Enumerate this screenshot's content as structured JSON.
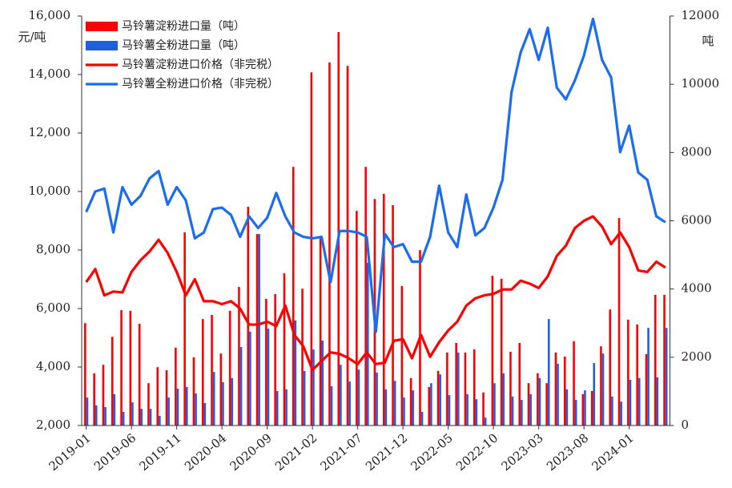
{
  "chart_data": {
    "type": "combo",
    "ylabel": "元/吨",
    "y2label": "吨",
    "categories": [
      "2019-01",
      null,
      null,
      null,
      null,
      "2019-06",
      null,
      null,
      null,
      null,
      "2019-11",
      null,
      null,
      null,
      null,
      "2020-04",
      null,
      null,
      null,
      null,
      "2020-09",
      null,
      null,
      null,
      null,
      "2021-02",
      null,
      null,
      null,
      null,
      "2021-07",
      null,
      null,
      null,
      null,
      "2021-12",
      null,
      null,
      null,
      null,
      "2022-05",
      null,
      null,
      null,
      null,
      "2022-10",
      null,
      null,
      null,
      null,
      "2023-03",
      null,
      null,
      null,
      null,
      "2023-08",
      null,
      null,
      null,
      null,
      "2024-01",
      null,
      null,
      null,
      null
    ],
    "series": [
      {
        "name": "马铃薯淀粉进口量（吨）",
        "type": "bar",
        "axis": "y2",
        "color": "#ff0000",
        "values": [
          3000,
          1530,
          1780,
          2600,
          3380,
          3360,
          2980,
          1240,
          1710,
          1620,
          2280,
          5660,
          2000,
          3120,
          3240,
          2110,
          3360,
          4060,
          6410,
          5610,
          3710,
          3850,
          4460,
          7580,
          4010,
          10350,
          5540,
          10640,
          11530,
          10540,
          6290,
          7580,
          6640,
          6790,
          6460,
          4090,
          1390,
          5140,
          1130,
          1600,
          2140,
          2420,
          2140,
          2230,
          970,
          4390,
          4300,
          2160,
          2420,
          1240,
          1530,
          1240,
          2140,
          2020,
          2470,
          920,
          1010,
          2320,
          3400,
          6080,
          3100,
          2960,
          2090,
          3830,
          3830
        ]
      },
      {
        "name": "马铃薯全粉进口量（吨）",
        "type": "bar",
        "axis": "y2",
        "color": "#1f5fe0",
        "values": [
          820,
          590,
          540,
          920,
          400,
          680,
          490,
          490,
          280,
          820,
          1080,
          1130,
          940,
          660,
          1570,
          1270,
          1390,
          2300,
          2750,
          5610,
          2840,
          1010,
          1060,
          3080,
          1600,
          2230,
          2490,
          1150,
          1780,
          1290,
          1640,
          4770,
          1550,
          1060,
          1310,
          820,
          1030,
          400,
          1240,
          1500,
          890,
          2140,
          920,
          770,
          230,
          1240,
          1530,
          850,
          750,
          920,
          1390,
          3120,
          1810,
          1060,
          750,
          1030,
          1830,
          2110,
          850,
          700,
          1340,
          1390,
          2860,
          1410,
          2860
        ]
      },
      {
        "name": "马铃薯淀粉进口价格（非完税）",
        "type": "line",
        "color": "#ff0000",
        "values": [
          6900,
          7350,
          6450,
          6580,
          6550,
          7250,
          7650,
          7950,
          8350,
          7900,
          7250,
          6450,
          7000,
          6250,
          6250,
          6150,
          6250,
          6000,
          5450,
          5450,
          5550,
          5400,
          6100,
          5100,
          4700,
          3900,
          4200,
          4500,
          4450,
          4300,
          4100,
          4500,
          4100,
          4150,
          4900,
          4950,
          4300,
          5100,
          4350,
          4850,
          5250,
          5550,
          6100,
          6350,
          6450,
          6500,
          6650,
          6650,
          6950,
          6850,
          6700,
          7100,
          7800,
          8150,
          8750,
          9000,
          9150,
          8800,
          8200,
          8600,
          8100,
          7300,
          7250,
          7600,
          7400
        ]
      },
      {
        "name": "马铃薯全粉进口价格（非完税）",
        "type": "line",
        "color": "#1a6cf0",
        "values": [
          9300,
          10000,
          10100,
          8600,
          10150,
          9550,
          9850,
          10450,
          10700,
          9550,
          10150,
          9700,
          8400,
          8600,
          9400,
          9450,
          9200,
          8450,
          9150,
          8750,
          9100,
          9950,
          9150,
          8600,
          8450,
          8400,
          8450,
          6900,
          8650,
          8650,
          8600,
          8450,
          5200,
          8550,
          8100,
          8200,
          7600,
          7600,
          8450,
          10200,
          8600,
          8100,
          9900,
          8500,
          8750,
          9450,
          10400,
          13400,
          14750,
          15550,
          14500,
          15600,
          13550,
          13150,
          13800,
          14650,
          15900,
          14500,
          13900,
          11350,
          12250,
          10650,
          10400,
          9150,
          8950
        ]
      }
    ],
    "ylim": [
      2000,
      16000
    ],
    "yticks": [
      {
        "value": 2000,
        "label": "2,000"
      },
      {
        "value": 4000,
        "label": "4,000"
      },
      {
        "value": 6000,
        "label": "6,000"
      },
      {
        "value": 8000,
        "label": "8,000"
      },
      {
        "value": 10000,
        "label": "10,000"
      },
      {
        "value": 12000,
        "label": "12,000"
      },
      {
        "value": 14000,
        "label": "14,000"
      },
      {
        "value": 16000,
        "label": "16,000"
      }
    ],
    "y2lim": [
      0,
      12000
    ],
    "y2ticks": [
      0,
      2000,
      4000,
      6000,
      8000,
      10000,
      12000
    ],
    "legend": "upper-left"
  }
}
